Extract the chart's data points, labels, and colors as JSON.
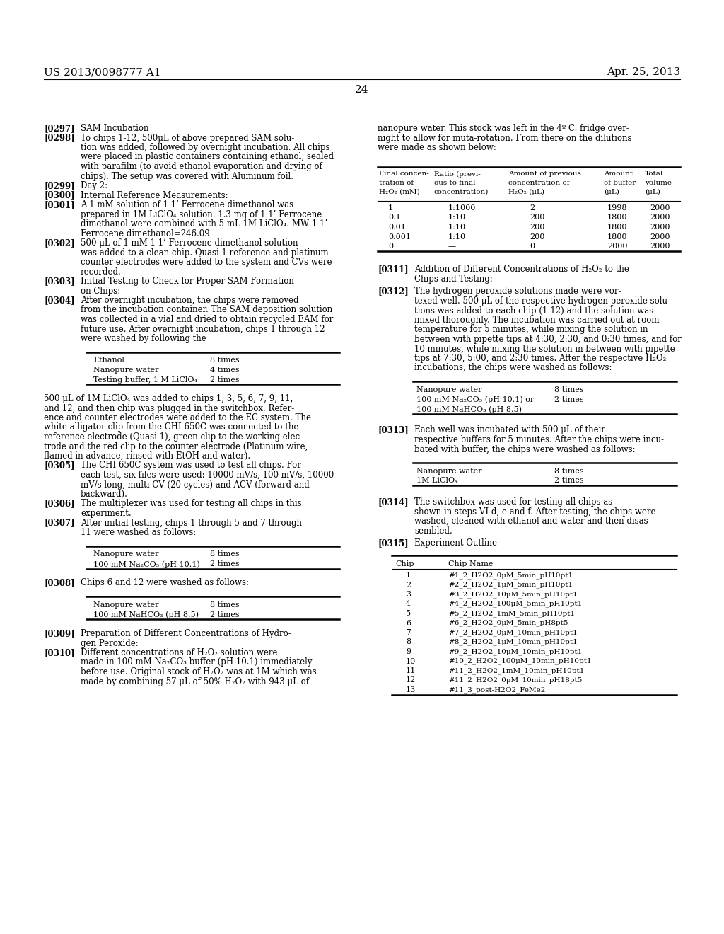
{
  "background_color": "#ffffff",
  "header_left": "US 2013/0098777 A1",
  "header_right": "Apr. 25, 2013",
  "page_number": "24",
  "table1_rows": [
    [
      "1",
      "1:1000",
      "2",
      "1998",
      "2000"
    ],
    [
      "0.1",
      "1:10",
      "200",
      "1800",
      "2000"
    ],
    [
      "0.01",
      "1:10",
      "200",
      "1800",
      "2000"
    ],
    [
      "0.001",
      "1:10",
      "200",
      "1800",
      "2000"
    ],
    [
      "0",
      "—",
      "0",
      "2000",
      "2000"
    ]
  ],
  "chip_table_rows": [
    [
      "1",
      "#1_2_H2O2_0μM_5min_pH10pt1"
    ],
    [
      "2",
      "#2_2_H2O2_1μM_5min_pH10pt1"
    ],
    [
      "3",
      "#3_2_H2O2_10μM_5min_pH10pt1"
    ],
    [
      "4",
      "#4_2_H2O2_100μM_5min_pH10pt1"
    ],
    [
      "5",
      "#5_2_H2O2_1mM_5min_pH10pt1"
    ],
    [
      "6",
      "#6_2_H2O2_0μM_5min_pH8pt5"
    ],
    [
      "7",
      "#7_2_H2O2_0μM_10min_pH10pt1"
    ],
    [
      "8",
      "#8_2_H2O2_1μM_10min_pH10pt1"
    ],
    [
      "9",
      "#9_2_H2O2_10μM_10min_pH10pt1"
    ],
    [
      "10",
      "#10_2_H2O2_100μM_10min_pH10pt1"
    ],
    [
      "11",
      "#11_2_H2O2_1mM_10min_pH10pt1"
    ],
    [
      "12",
      "#11_2_H2O2_0μM_10min_pH18pt5"
    ],
    [
      "13",
      "#11_3_post-H2O2_FeMe2"
    ]
  ]
}
